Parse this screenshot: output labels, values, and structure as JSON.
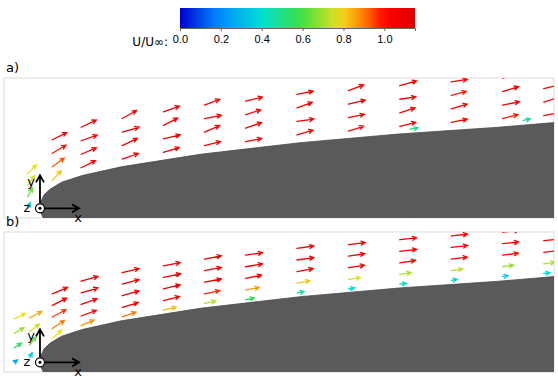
{
  "colorbar": {
    "title": "U/U∞:",
    "range": [
      0,
      1.15
    ],
    "ticks": [
      {
        "value": 0,
        "label": "0.0"
      },
      0.2,
      0.4,
      0.6,
      0.8,
      {
        "value": 1,
        "label": "1.0"
      }
    ]
  },
  "chart_data": [
    {
      "type": "quiver",
      "label": "a)",
      "axis_labels": {
        "x": "x",
        "y": "y",
        "z": "z"
      },
      "xlim": [
        -0.035,
        0.5
      ],
      "ylim": [
        -0.01,
        0.135
      ],
      "tick_labels": false,
      "surface": {
        "x": [
          0,
          0.001,
          0.004,
          0.01,
          0.021,
          0.041,
          0.079,
          0.156,
          0.253,
          0.349,
          0.446,
          0.502,
          0.502,
          0.02,
          0.004,
          0.001
        ],
        "y": [
          0,
          0.007,
          0.014,
          0.02,
          0.027,
          0.034,
          0.043,
          0.056,
          0.068,
          0.077,
          0.084,
          0.089,
          -0.02,
          -0.02,
          -0.012,
          -0.005
        ]
      },
      "x": [
        -0.012,
        -0.012,
        -0.012,
        -0.012,
        0.012,
        0.012,
        0.012,
        0.012,
        0.04,
        0.04,
        0.04,
        0.04,
        0.08,
        0.08,
        0.08,
        0.08,
        0.12,
        0.12,
        0.12,
        0.12,
        0.16,
        0.16,
        0.16,
        0.16,
        0.2,
        0.2,
        0.2,
        0.2,
        0.25,
        0.25,
        0.25,
        0.25,
        0.3,
        0.3,
        0.3,
        0.3,
        0.35,
        0.35,
        0.35,
        0.35,
        0.4,
        0.4,
        0.4,
        0.4,
        0.45,
        0.45,
        0.45,
        0.45,
        0.49,
        0.49,
        0.49,
        0.36,
        0.47
      ],
      "y": [
        0,
        0.012,
        0.024,
        0.036,
        0.029,
        0.043,
        0.057,
        0.071,
        0.042,
        0.056,
        0.07,
        0.084,
        0.051,
        0.065,
        0.079,
        0.093,
        0.058,
        0.072,
        0.086,
        0.1,
        0.065,
        0.079,
        0.093,
        0.107,
        0.069,
        0.083,
        0.097,
        0.111,
        0.076,
        0.09,
        0.104,
        0.118,
        0.08,
        0.094,
        0.108,
        0.122,
        0.085,
        0.099,
        0.113,
        0.127,
        0.089,
        0.103,
        0.117,
        0.131,
        0.093,
        0.107,
        0.121,
        0.135,
        0.096,
        0.11,
        0.124,
        0.082,
        0.091
      ],
      "u": [
        0.15,
        0.3,
        0.45,
        0.55,
        0.55,
        0.75,
        0.85,
        0.9,
        0.9,
        0.95,
        1.0,
        0.95,
        1.0,
        0.95,
        1.05,
        0.9,
        1.0,
        1.05,
        0.9,
        1.0,
        1.0,
        0.95,
        1.05,
        0.95,
        1.0,
        1.0,
        0.95,
        1.05,
        1.0,
        1.05,
        0.95,
        1.0,
        0.95,
        1.0,
        1.05,
        0.95,
        1.0,
        0.95,
        1.0,
        1.05,
        1.0,
        1.0,
        0.95,
        1.0,
        0.95,
        1.05,
        1.0,
        0.95,
        1.0,
        0.95,
        1.0,
        0.5,
        0.45
      ],
      "v": [
        0.35,
        0.55,
        0.6,
        0.55,
        0.6,
        0.55,
        0.5,
        0.45,
        0.45,
        0.4,
        0.35,
        0.45,
        0.35,
        0.45,
        0.3,
        0.5,
        0.3,
        0.25,
        0.45,
        0.35,
        0.25,
        0.4,
        0.2,
        0.35,
        0.2,
        0.35,
        0.3,
        0.25,
        0.3,
        0.15,
        0.35,
        0.2,
        0.3,
        0.2,
        0.25,
        0.35,
        0.25,
        0.3,
        0.15,
        0.3,
        0.2,
        0.3,
        0.25,
        0.15,
        0.25,
        0.2,
        0.3,
        0.2,
        0.2,
        0.3,
        0.25,
        0.08,
        0.1
      ]
    },
    {
      "type": "quiver",
      "label": "b)",
      "axis_labels": {
        "x": "x",
        "y": "y",
        "z": "z"
      },
      "xlim": [
        -0.035,
        0.5
      ],
      "ylim": [
        -0.01,
        0.135
      ],
      "tick_labels": false,
      "surface": {
        "x": [
          0,
          0.001,
          0.004,
          0.01,
          0.021,
          0.041,
          0.079,
          0.156,
          0.253,
          0.349,
          0.446,
          0.502,
          0.502,
          0.02,
          0.004,
          0.001
        ],
        "y": [
          0,
          0.007,
          0.014,
          0.02,
          0.027,
          0.034,
          0.043,
          0.056,
          0.068,
          0.077,
          0.084,
          0.089,
          -0.02,
          -0.02,
          -0.012,
          -0.005
        ]
      },
      "x": [
        -0.025,
        -0.025,
        -0.025,
        -0.025,
        -0.01,
        -0.01,
        -0.01,
        -0.01,
        0.012,
        0.012,
        0.012,
        0.012,
        0.012,
        0.04,
        0.04,
        0.04,
        0.04,
        0.04,
        0.08,
        0.08,
        0.08,
        0.08,
        0.08,
        0.12,
        0.12,
        0.12,
        0.12,
        0.12,
        0.16,
        0.16,
        0.16,
        0.16,
        0.16,
        0.2,
        0.2,
        0.2,
        0.2,
        0.2,
        0.25,
        0.25,
        0.25,
        0.25,
        0.25,
        0.3,
        0.3,
        0.3,
        0.3,
        0.3,
        0.35,
        0.35,
        0.35,
        0.35,
        0.35,
        0.4,
        0.4,
        0.4,
        0.4,
        0.4,
        0.45,
        0.45,
        0.45,
        0.45,
        0.45,
        0.49,
        0.49,
        0.49,
        0.49
      ],
      "y": [
        0,
        0.015,
        0.03,
        0.045,
        0.005,
        0.018,
        0.032,
        0.046,
        0.025,
        0.035,
        0.047,
        0.059,
        0.071,
        0.038,
        0.048,
        0.06,
        0.072,
        0.084,
        0.047,
        0.057,
        0.069,
        0.081,
        0.093,
        0.054,
        0.064,
        0.076,
        0.088,
        0.1,
        0.061,
        0.071,
        0.083,
        0.095,
        0.107,
        0.065,
        0.075,
        0.087,
        0.099,
        0.111,
        0.072,
        0.082,
        0.094,
        0.106,
        0.118,
        0.076,
        0.086,
        0.098,
        0.11,
        0.122,
        0.081,
        0.091,
        0.103,
        0.115,
        0.127,
        0.085,
        0.095,
        0.107,
        0.119,
        0.131,
        0.089,
        0.099,
        0.111,
        0.123,
        0.135,
        0.092,
        0.102,
        0.114,
        0.126
      ],
      "u": [
        0.2,
        0.45,
        0.6,
        0.7,
        0.15,
        0.4,
        0.6,
        0.75,
        0.6,
        0.75,
        0.85,
        0.9,
        0.95,
        0.8,
        0.95,
        1.0,
        1.05,
        1.05,
        0.85,
        1.0,
        1.05,
        1.05,
        1.05,
        0.8,
        1.0,
        1.05,
        1.08,
        1.05,
        0.7,
        0.95,
        1.05,
        1.05,
        1.05,
        0.55,
        0.85,
        1.0,
        1.05,
        1.05,
        0.45,
        0.8,
        1.0,
        1.05,
        1.05,
        0.4,
        0.75,
        1.0,
        1.02,
        1.05,
        0.42,
        0.7,
        0.98,
        1.05,
        1.05,
        0.38,
        0.72,
        1.0,
        1.02,
        1.02,
        0.35,
        0.68,
        0.98,
        1.0,
        1.02,
        0.4,
        0.7,
        1.0,
        1.02
      ],
      "v": [
        0.15,
        0.3,
        0.35,
        0.35,
        0.3,
        0.5,
        0.45,
        0.4,
        0.5,
        0.5,
        0.45,
        0.45,
        0.4,
        0.35,
        0.35,
        0.35,
        0.3,
        0.3,
        0.3,
        0.3,
        0.3,
        0.28,
        0.25,
        0.2,
        0.25,
        0.25,
        0.22,
        0.2,
        0.15,
        0.2,
        0.2,
        0.2,
        0.2,
        0.1,
        0.15,
        0.2,
        0.18,
        0.15,
        0.08,
        0.15,
        0.18,
        0.15,
        0.15,
        0.06,
        0.1,
        0.15,
        0.15,
        0.12,
        0.05,
        0.12,
        0.15,
        0.12,
        0.12,
        0.05,
        0.1,
        0.12,
        0.12,
        0.1,
        0.04,
        0.1,
        0.12,
        0.1,
        0.1,
        0.05,
        0.1,
        0.12,
        0.1
      ]
    }
  ]
}
